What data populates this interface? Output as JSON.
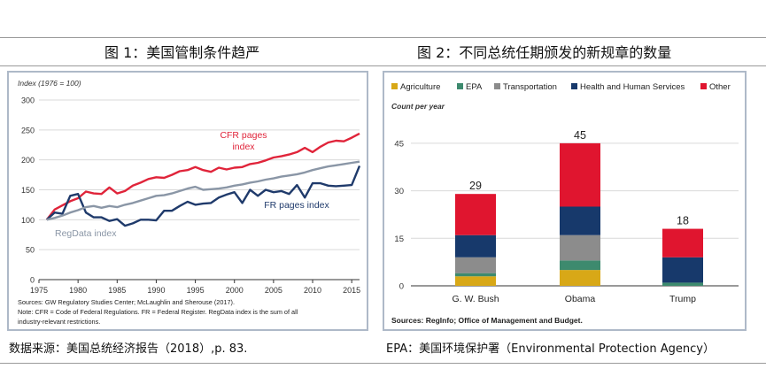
{
  "page": {
    "fig1_title": "图 1：美国管制条件趋严",
    "fig2_title": "图 2：不同总统任期颁发的新规章的数量",
    "fig1_caption": "数据来源：美国总统经济报告（2018）,p. 83.",
    "fig2_caption": "EPA：美国环境保护署（Environmental Protection Agency）"
  },
  "chart_data": [
    {
      "type": "line",
      "ylabel": "Index (1976 = 100)",
      "xlim": [
        1975,
        2016
      ],
      "ylim": [
        0,
        300
      ],
      "xticks": [
        1975,
        1980,
        1985,
        1990,
        1995,
        2000,
        2005,
        2010,
        2015
      ],
      "yticks": [
        0,
        50,
        100,
        150,
        200,
        250,
        300
      ],
      "grid": true,
      "annotations": [
        "CFR pages index",
        "FR pages index",
        "RegData index"
      ],
      "x": [
        1976,
        1977,
        1978,
        1979,
        1980,
        1981,
        1982,
        1983,
        1984,
        1985,
        1986,
        1987,
        1988,
        1989,
        1990,
        1991,
        1992,
        1993,
        1994,
        1995,
        1996,
        1997,
        1998,
        1999,
        2000,
        2001,
        2002,
        2003,
        2004,
        2005,
        2006,
        2007,
        2008,
        2009,
        2010,
        2011,
        2012,
        2013,
        2014,
        2015,
        2016
      ],
      "series": [
        {
          "name": "CFR pages index",
          "color": "#e0243a",
          "values": [
            100,
            117,
            124,
            131,
            136,
            147,
            144,
            143,
            154,
            144,
            148,
            157,
            162,
            168,
            171,
            170,
            175,
            181,
            183,
            188,
            183,
            180,
            187,
            184,
            187,
            188,
            193,
            195,
            199,
            204,
            206,
            209,
            213,
            220,
            213,
            222,
            229,
            232,
            231,
            237,
            244
          ]
        },
        {
          "name": "FR pages index",
          "color": "#1f3a6b",
          "values": [
            100,
            112,
            110,
            140,
            143,
            112,
            104,
            104,
            98,
            101,
            90,
            94,
            100,
            100,
            99,
            115,
            115,
            123,
            130,
            125,
            127,
            128,
            137,
            142,
            146,
            128,
            150,
            140,
            150,
            146,
            148,
            143,
            158,
            137,
            161,
            161,
            157,
            156,
            157,
            158,
            190
          ]
        },
        {
          "name": "RegData index",
          "color": "#8a96a6",
          "values": [
            100,
            103,
            107,
            112,
            116,
            121,
            123,
            120,
            123,
            121,
            125,
            128,
            132,
            136,
            140,
            141,
            144,
            148,
            152,
            155,
            150,
            151,
            152,
            154,
            157,
            159,
            162,
            164,
            167,
            169,
            172,
            174,
            176,
            179,
            183,
            186,
            189,
            191,
            193,
            195,
            197
          ]
        }
      ],
      "sources": "Sources: GW Regulatory Studies Center; McLaughlin and Sherouse (2017).",
      "note": "Note: CFR = Code of Federal Regulations. FR = Federal Register. RegData index is the sum of all",
      "note2": "industry-relevant restrictions."
    },
    {
      "type": "bar",
      "stacked": true,
      "ylabel": "Count per year",
      "ylim": [
        0,
        50
      ],
      "yticks": [
        0,
        15,
        30,
        45
      ],
      "categories": [
        "G. W. Bush",
        "Obama",
        "Trump"
      ],
      "totals": [
        "29",
        "45",
        "18"
      ],
      "legend_position": "top",
      "series": [
        {
          "name": "Agriculture",
          "color": "#d8a817",
          "values": [
            3,
            5,
            0
          ]
        },
        {
          "name": "EPA",
          "color": "#3d8a6e",
          "values": [
            1,
            3,
            1
          ]
        },
        {
          "name": "Transportation",
          "color": "#8c8c8c",
          "values": [
            5,
            8,
            0
          ]
        },
        {
          "name": "Health and Human Services",
          "color": "#17396b",
          "values": [
            7,
            9,
            8
          ]
        },
        {
          "name": "Other",
          "color": "#e0152f",
          "values": [
            13,
            20,
            9
          ]
        }
      ],
      "sources": "Sources: RegInfo; Office of Management and Budget."
    }
  ]
}
